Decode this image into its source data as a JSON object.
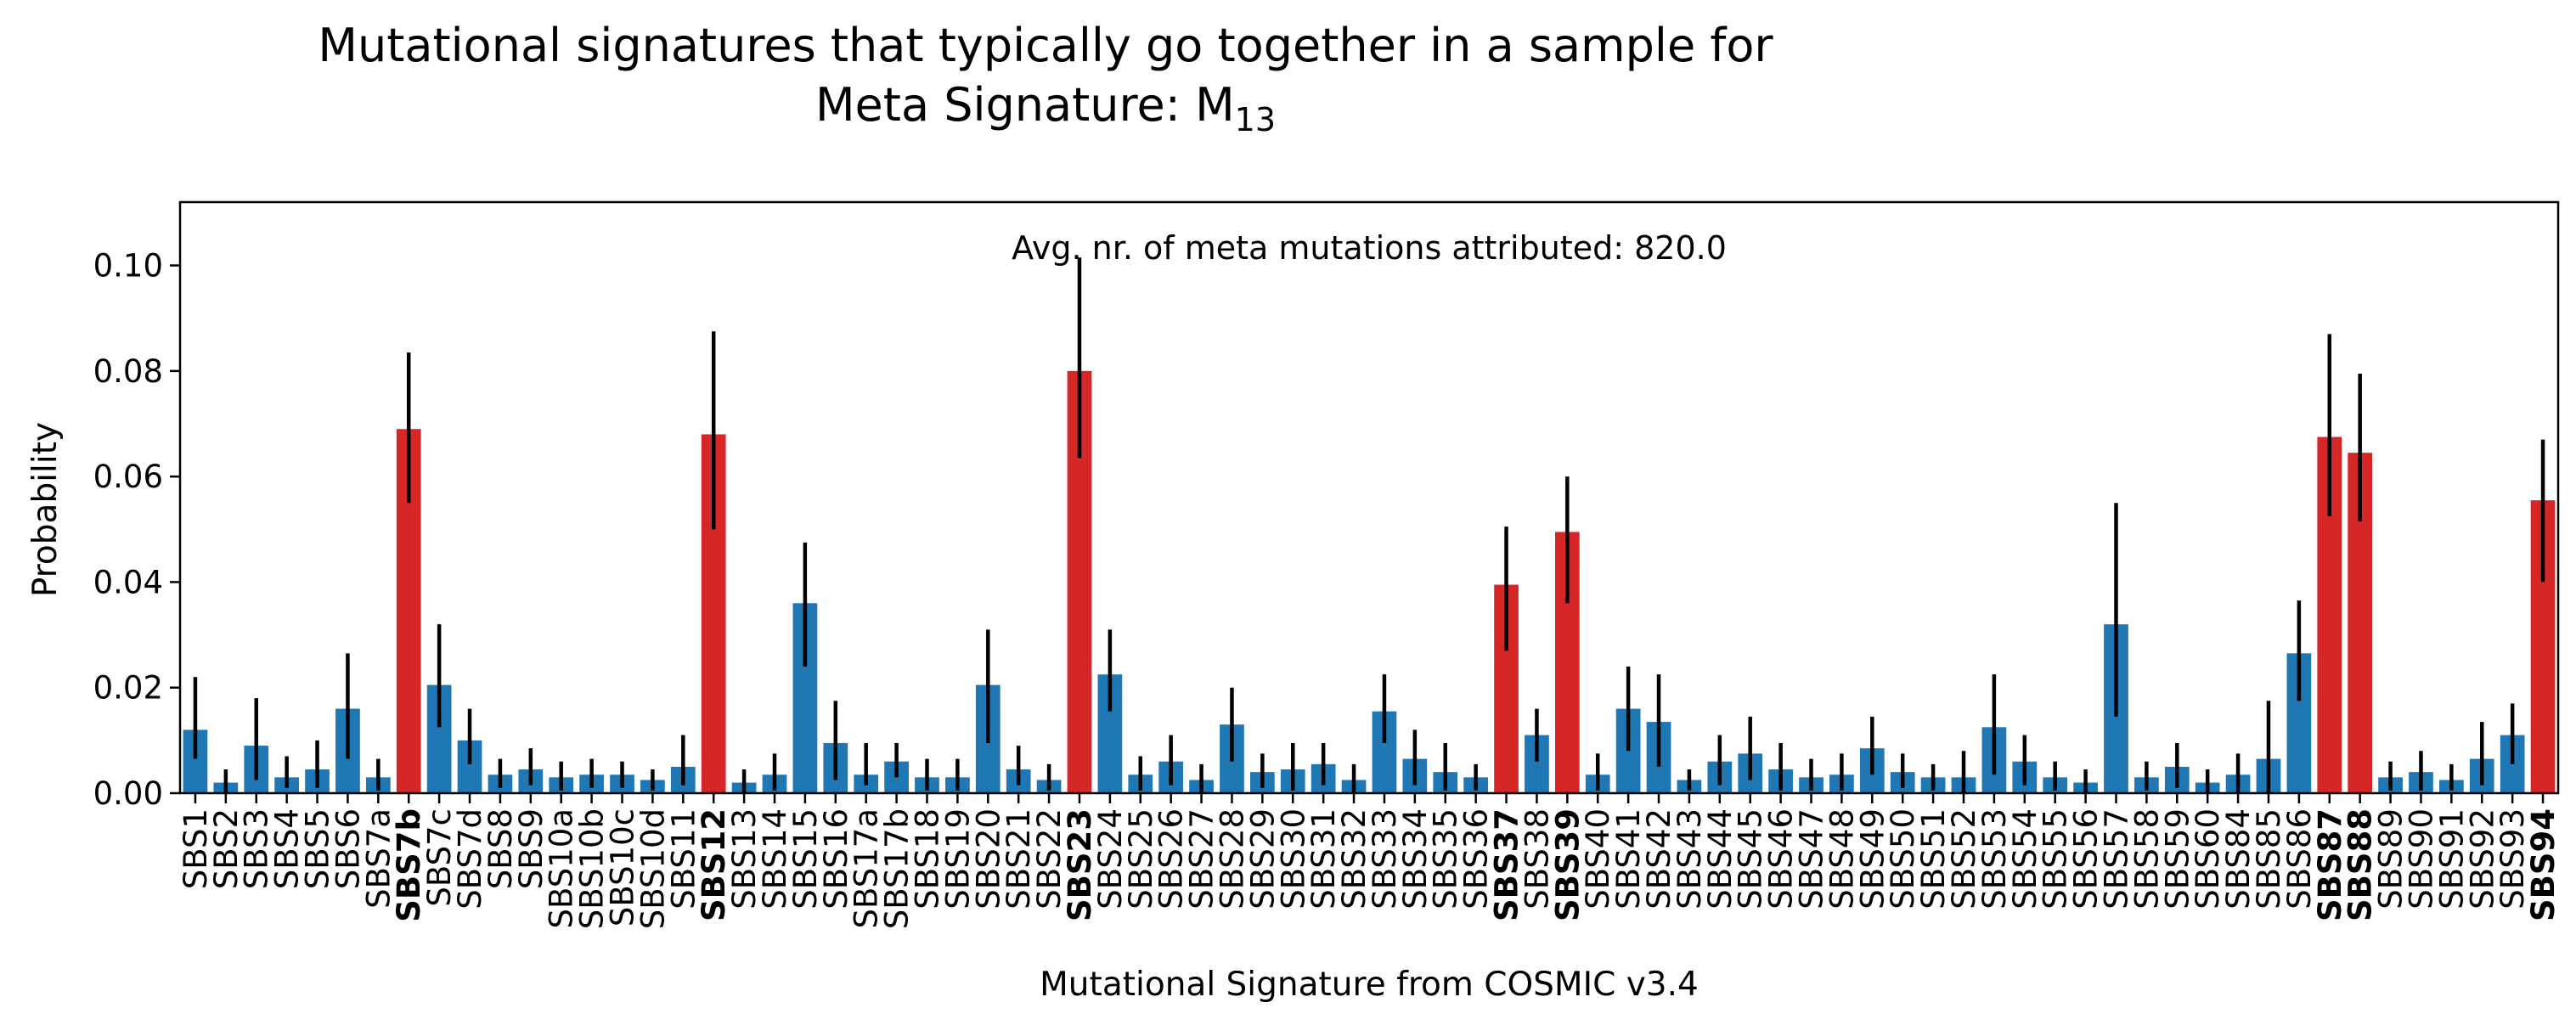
{
  "chart_data": {
    "type": "bar",
    "title": "Mutational signatures that typically go together in a sample for",
    "subtitle": "Meta Signature: M",
    "subtitle_subscript": "13",
    "annotation": "Avg. nr. of meta mutations attributed: 820.0",
    "xlabel": "Mutational Signature from COSMIC v3.4",
    "ylabel": "Probability",
    "ylim": [
      0,
      0.112
    ],
    "yticks": [
      "0.00",
      "0.02",
      "0.04",
      "0.06",
      "0.08",
      "0.10"
    ],
    "ytick_values": [
      0,
      0.02,
      0.04,
      0.06,
      0.08,
      0.1
    ],
    "grid": false,
    "colors": {
      "normal": "#1f77b4",
      "highlight": "#d62728",
      "error": "#000000"
    },
    "categories": [
      "SBS1",
      "SBS2",
      "SBS3",
      "SBS4",
      "SBS5",
      "SBS6",
      "SBS7a",
      "SBS7b",
      "SBS7c",
      "SBS7d",
      "SBS8",
      "SBS9",
      "SBS10a",
      "SBS10b",
      "SBS10c",
      "SBS10d",
      "SBS11",
      "SBS12",
      "SBS13",
      "SBS14",
      "SBS15",
      "SBS16",
      "SBS17a",
      "SBS17b",
      "SBS18",
      "SBS19",
      "SBS20",
      "SBS21",
      "SBS22",
      "SBS23",
      "SBS24",
      "SBS25",
      "SBS26",
      "SBS27",
      "SBS28",
      "SBS29",
      "SBS30",
      "SBS31",
      "SBS32",
      "SBS33",
      "SBS34",
      "SBS35",
      "SBS36",
      "SBS37",
      "SBS38",
      "SBS39",
      "SBS40",
      "SBS41",
      "SBS42",
      "SBS43",
      "SBS44",
      "SBS45",
      "SBS46",
      "SBS47",
      "SBS48",
      "SBS49",
      "SBS50",
      "SBS51",
      "SBS52",
      "SBS53",
      "SBS54",
      "SBS55",
      "SBS56",
      "SBS57",
      "SBS58",
      "SBS59",
      "SBS60",
      "SBS84",
      "SBS85",
      "SBS86",
      "SBS87",
      "SBS88",
      "SBS89",
      "SBS90",
      "SBS91",
      "SBS92",
      "SBS93",
      "SBS94"
    ],
    "values": [
      0.012,
      0.002,
      0.009,
      0.003,
      0.0045,
      0.016,
      0.003,
      0.069,
      0.0205,
      0.01,
      0.0035,
      0.0045,
      0.003,
      0.0035,
      0.0035,
      0.0025,
      0.005,
      0.068,
      0.002,
      0.0035,
      0.036,
      0.0095,
      0.0035,
      0.006,
      0.003,
      0.003,
      0.0205,
      0.0045,
      0.0025,
      0.08,
      0.0225,
      0.0035,
      0.006,
      0.0025,
      0.013,
      0.004,
      0.0045,
      0.0055,
      0.0025,
      0.0155,
      0.0065,
      0.004,
      0.003,
      0.0395,
      0.011,
      0.0495,
      0.0035,
      0.016,
      0.0135,
      0.0025,
      0.006,
      0.0075,
      0.0045,
      0.003,
      0.0035,
      0.0085,
      0.004,
      0.003,
      0.003,
      0.0125,
      0.006,
      0.003,
      0.002,
      0.032,
      0.003,
      0.005,
      0.002,
      0.0035,
      0.0065,
      0.0265,
      0.0675,
      0.0645,
      0.003,
      0.004,
      0.0025,
      0.0065,
      0.011,
      0.0555
    ],
    "error_low": [
      0.0065,
      0.0,
      0.0025,
      0.001,
      0.001,
      0.0065,
      0.0005,
      0.055,
      0.0125,
      0.0055,
      0.001,
      0.0015,
      0.0005,
      0.001,
      0.001,
      0.0005,
      0.0015,
      0.05,
      0.0,
      0.0005,
      0.024,
      0.0025,
      0.0015,
      0.003,
      0.0005,
      0.0005,
      0.0095,
      0.0015,
      0.0005,
      0.0635,
      0.0155,
      0.0005,
      0.0015,
      0.0,
      0.006,
      0.001,
      0.0005,
      0.0015,
      0.0,
      0.0095,
      0.0015,
      0.0005,
      0.0005,
      0.027,
      0.006,
      0.036,
      0.0005,
      0.008,
      0.005,
      0.0005,
      0.0015,
      0.0025,
      0.0005,
      0.0005,
      0.0005,
      0.0035,
      0.001,
      0.0005,
      0.0,
      0.0035,
      0.0015,
      0.0005,
      0.0,
      0.0145,
      0.0005,
      0.001,
      0.0,
      0.0,
      0.0,
      0.0175,
      0.0525,
      0.0515,
      0.0005,
      0.0005,
      0.0005,
      0.0015,
      0.0055,
      0.04
    ],
    "error_high": [
      0.022,
      0.0045,
      0.018,
      0.007,
      0.01,
      0.0265,
      0.0065,
      0.0835,
      0.032,
      0.016,
      0.0065,
      0.0085,
      0.006,
      0.0065,
      0.006,
      0.0045,
      0.011,
      0.0875,
      0.0045,
      0.0075,
      0.0475,
      0.0175,
      0.0095,
      0.0095,
      0.0065,
      0.0065,
      0.031,
      0.009,
      0.0055,
      0.1015,
      0.031,
      0.007,
      0.011,
      0.0055,
      0.02,
      0.0075,
      0.0095,
      0.0095,
      0.0055,
      0.0225,
      0.012,
      0.0095,
      0.0055,
      0.0505,
      0.016,
      0.06,
      0.0075,
      0.024,
      0.0225,
      0.0045,
      0.011,
      0.0145,
      0.0095,
      0.0065,
      0.0075,
      0.0145,
      0.0075,
      0.0055,
      0.008,
      0.0225,
      0.011,
      0.006,
      0.0045,
      0.055,
      0.006,
      0.0095,
      0.0045,
      0.0075,
      0.0175,
      0.0365,
      0.087,
      0.0795,
      0.006,
      0.008,
      0.0055,
      0.0135,
      0.017,
      0.067
    ],
    "highlighted": [
      "SBS7b",
      "SBS12",
      "SBS23",
      "SBS37",
      "SBS39",
      "SBS87",
      "SBS88",
      "SBS94"
    ]
  }
}
